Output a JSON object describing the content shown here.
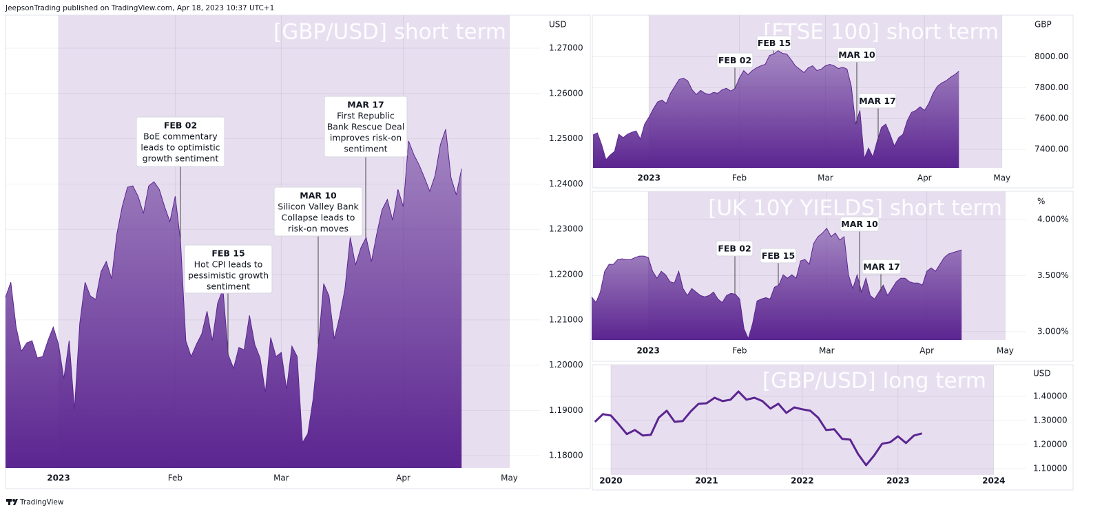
{
  "header": {
    "text": "JeepsonTrading published on TradingView.com, Apr 18, 2023 10:37 UTC+1"
  },
  "footer": {
    "brand": "TradingView"
  },
  "chart_data": [
    {
      "type": "area",
      "title": "[GBP/USD] short term",
      "unit": "USD",
      "color": "#5b2590",
      "shade": "#e7dff0",
      "categories": [
        null,
        null,
        null,
        null,
        null,
        null,
        null,
        null,
        null,
        null,
        "2023",
        null,
        null,
        null,
        null,
        null,
        null,
        null,
        null,
        null,
        null,
        null,
        null,
        null,
        null,
        null,
        null,
        null,
        null,
        null,
        null,
        null,
        "Feb",
        null,
        null,
        null,
        null,
        null,
        null,
        null,
        null,
        null,
        null,
        null,
        null,
        null,
        null,
        null,
        null,
        null,
        null,
        null,
        "Mar",
        null,
        null,
        null,
        null,
        null,
        null,
        null,
        null,
        null,
        null,
        null,
        null,
        null,
        null,
        null,
        null,
        null,
        null,
        null,
        null,
        null,
        null,
        "Apr",
        null,
        null,
        null,
        null,
        null,
        null,
        null,
        null,
        null,
        null,
        null,
        null,
        null,
        null,
        null,
        null,
        null,
        null,
        null,
        "May",
        null,
        null,
        null,
        null,
        null,
        null
      ],
      "values": [
        1.215,
        1.2183,
        1.2084,
        1.2031,
        1.2049,
        1.2054,
        1.2016,
        1.2019,
        1.2054,
        1.2084,
        1.2046,
        1.197,
        1.2054,
        1.1902,
        1.2092,
        1.2183,
        1.2153,
        1.2145,
        1.2206,
        1.2229,
        1.2191,
        1.229,
        1.235,
        1.2393,
        1.2396,
        1.2373,
        1.2335,
        1.2396,
        1.2405,
        1.2388,
        1.235,
        1.2317,
        1.2373,
        1.2274,
        1.2054,
        1.2019,
        1.2046,
        1.2069,
        1.2119,
        1.2054,
        1.2137,
        1.2168,
        1.2023,
        1.1993,
        1.2039,
        1.2034,
        1.211,
        1.2046,
        1.2016,
        1.194,
        1.2061,
        1.2019,
        1.2028,
        1.1947,
        1.2042,
        1.2019,
        1.1829,
        1.1849,
        1.1925,
        1.2046,
        1.218,
        1.2153,
        1.2058,
        1.2107,
        1.2168,
        1.2282,
        1.2221,
        1.2259,
        1.2282,
        1.2229,
        1.229,
        1.2343,
        1.2366,
        1.232,
        1.2388,
        1.235,
        1.2495,
        1.2465,
        1.2442,
        1.2414,
        1.2384,
        1.2419,
        1.2487,
        1.2521,
        1.2414,
        1.2376,
        1.2434,
        null,
        null,
        null,
        null,
        null,
        null,
        null,
        null,
        null,
        null,
        null,
        null,
        null,
        null,
        null
      ],
      "ylim": [
        1.1773,
        1.2773
      ],
      "yticks": [
        {
          "value": 1.18,
          "label": "1.18000"
        },
        {
          "value": 1.19,
          "label": "1.19000"
        },
        {
          "value": 1.2,
          "label": "1.20000"
        },
        {
          "value": 1.21,
          "label": "1.21000"
        },
        {
          "value": 1.22,
          "label": "1.22000"
        },
        {
          "value": 1.23,
          "label": "1.23000"
        },
        {
          "value": 1.24,
          "label": "1.24000"
        },
        {
          "value": 1.25,
          "label": "1.25000"
        },
        {
          "value": 1.26,
          "label": "1.26000"
        },
        {
          "value": 1.27,
          "label": "1.27000"
        }
      ],
      "annotations": [
        {
          "date": "FEB 02",
          "text": [
            "BoE commentary",
            "leads to optimistic",
            "growth sentiment"
          ]
        },
        {
          "date": "FEB 15",
          "text": [
            "Hot CPI leads to",
            "pessimistic growth",
            "sentiment"
          ]
        },
        {
          "date": "MAR 10",
          "text": [
            "Silicon Valley Bank",
            "Collapse leads to",
            "risk-on moves"
          ]
        },
        {
          "date": "MAR 17",
          "text": [
            "First Republic",
            "Bank Rescue Deal",
            "improves risk-on",
            "sentiment"
          ]
        }
      ]
    },
    {
      "type": "area",
      "title": "[FTSE 100] short term",
      "unit": "GBP",
      "color": "#5b2590",
      "shade": "#e7dff0",
      "categories": [
        null,
        null,
        null,
        null,
        null,
        null,
        null,
        null,
        null,
        null,
        null,
        null,
        null,
        "2023",
        null,
        null,
        null,
        null,
        null,
        null,
        null,
        null,
        null,
        null,
        null,
        null,
        null,
        null,
        null,
        null,
        null,
        null,
        null,
        null,
        "Feb",
        null,
        null,
        null,
        null,
        null,
        null,
        null,
        null,
        null,
        null,
        null,
        null,
        null,
        null,
        null,
        null,
        null,
        null,
        null,
        "Mar",
        null,
        null,
        null,
        null,
        null,
        null,
        null,
        null,
        null,
        null,
        null,
        null,
        null,
        null,
        null,
        null,
        null,
        null,
        null,
        null,
        null,
        null,
        "Apr",
        null,
        null,
        null,
        null,
        null,
        null,
        null,
        null,
        null,
        null,
        null,
        null,
        null,
        null,
        null,
        null,
        null,
        "May",
        null,
        null,
        null,
        null,
        null
      ],
      "values": [
        7493,
        7507,
        7431,
        7333,
        7364,
        7387,
        7498,
        7476,
        7498,
        7511,
        7520,
        7467,
        7564,
        7609,
        7662,
        7707,
        7720,
        7698,
        7764,
        7809,
        7853,
        7862,
        7844,
        7787,
        7756,
        7782,
        7764,
        7756,
        7769,
        7764,
        7787,
        7796,
        7778,
        7796,
        7862,
        7911,
        7884,
        7911,
        7929,
        7942,
        7951,
        8009,
        8018,
        8040,
        8022,
        8018,
        7982,
        7942,
        7920,
        7898,
        7929,
        7942,
        7911,
        7920,
        7942,
        7951,
        7942,
        7924,
        7933,
        7920,
        7809,
        7564,
        7653,
        7342,
        7409,
        7351,
        7453,
        7542,
        7564,
        7498,
        7422,
        7476,
        7498,
        7587,
        7640,
        7653,
        7676,
        7653,
        7698,
        7764,
        7809,
        7831,
        7844,
        7867,
        7884,
        7907,
        null,
        null,
        null,
        null,
        null,
        null,
        null,
        null,
        null,
        null,
        null,
        null,
        null,
        null,
        null
      ],
      "ylim": [
        7280,
        8270
      ],
      "yticks": [
        {
          "value": 7400,
          "label": "7400.00"
        },
        {
          "value": 7600,
          "label": "7600.00"
        },
        {
          "value": 7800,
          "label": "7800.00"
        },
        {
          "value": 8000,
          "label": "8000.00"
        }
      ],
      "annotations": [
        {
          "date": "FEB 02"
        },
        {
          "date": "FEB 15"
        },
        {
          "date": "MAR 10"
        },
        {
          "date": "MAR 17"
        }
      ]
    },
    {
      "type": "area",
      "title": "[UK 10Y YIELDS] short term",
      "unit": "%",
      "color": "#5b2590",
      "shade": "#e7dff0",
      "categories": [
        null,
        null,
        null,
        null,
        null,
        null,
        null,
        null,
        null,
        null,
        null,
        null,
        null,
        "2023",
        null,
        null,
        null,
        null,
        null,
        null,
        null,
        null,
        null,
        null,
        null,
        null,
        null,
        null,
        null,
        null,
        null,
        null,
        null,
        null,
        "Feb",
        null,
        null,
        null,
        null,
        null,
        null,
        null,
        null,
        null,
        null,
        null,
        null,
        null,
        null,
        null,
        null,
        null,
        null,
        null,
        "Mar",
        null,
        null,
        null,
        null,
        null,
        null,
        null,
        null,
        null,
        null,
        null,
        null,
        null,
        null,
        null,
        null,
        null,
        null,
        null,
        null,
        null,
        null,
        "Apr",
        null,
        null,
        null,
        null,
        null,
        null,
        null,
        null,
        null,
        null,
        null,
        null,
        null,
        null,
        null,
        null,
        null,
        "May",
        null,
        null,
        null,
        null,
        null
      ],
      "values": [
        3.309,
        3.259,
        3.352,
        3.537,
        3.599,
        3.599,
        3.642,
        3.648,
        3.642,
        3.642,
        3.66,
        3.673,
        3.673,
        3.66,
        3.537,
        3.475,
        3.537,
        3.506,
        3.444,
        3.432,
        3.537,
        3.383,
        3.321,
        3.383,
        3.352,
        3.321,
        3.309,
        3.321,
        3.352,
        3.29,
        3.259,
        3.321,
        3.34,
        3.333,
        3.29,
        3.025,
        2.938,
        3.074,
        3.272,
        3.29,
        3.302,
        3.29,
        3.395,
        3.414,
        3.506,
        3.475,
        3.506,
        3.475,
        3.63,
        3.642,
        3.599,
        3.784,
        3.846,
        3.877,
        3.92,
        3.846,
        3.877,
        3.815,
        3.846,
        3.506,
        3.383,
        3.506,
        3.352,
        3.475,
        3.321,
        3.29,
        3.352,
        3.414,
        3.321,
        3.383,
        3.444,
        3.475,
        3.475,
        3.444,
        3.432,
        3.432,
        3.414,
        3.537,
        3.568,
        3.537,
        3.599,
        3.66,
        3.691,
        3.704,
        3.716,
        3.728,
        null,
        null,
        null,
        null,
        null,
        null,
        null,
        null,
        null,
        null,
        null,
        null,
        null,
        null,
        null
      ],
      "ylim": [
        2.925,
        4.25
      ],
      "yticks": [
        {
          "value": 3,
          "label": "3.000%"
        },
        {
          "value": 3.5,
          "label": "3.500%"
        },
        {
          "value": 4,
          "label": "4.000%"
        }
      ],
      "annotations": [
        {
          "date": "FEB 02"
        },
        {
          "date": "FEB 15"
        },
        {
          "date": "MAR 10"
        },
        {
          "date": "MAR 17"
        }
      ]
    },
    {
      "type": "line",
      "title": "[GBP/USD] long term",
      "unit": "USD",
      "color": "#5b2590",
      "shade": "#e7dff0",
      "categories": [
        null,
        null,
        "2020",
        null,
        null,
        null,
        null,
        null,
        null,
        null,
        null,
        null,
        null,
        null,
        "2021",
        null,
        null,
        null,
        null,
        null,
        null,
        null,
        null,
        null,
        null,
        null,
        "2022",
        null,
        null,
        null,
        null,
        null,
        null,
        null,
        null,
        null,
        null,
        null,
        "2023",
        null,
        null,
        null,
        null,
        null,
        null,
        null,
        null,
        null,
        null,
        null,
        "2024",
        null,
        null,
        null,
        null
      ],
      "values": [
        1.294,
        1.326,
        1.32,
        1.283,
        1.243,
        1.26,
        1.237,
        1.24,
        1.311,
        1.34,
        1.294,
        1.297,
        1.337,
        1.369,
        1.371,
        1.394,
        1.38,
        1.386,
        1.42,
        1.386,
        1.394,
        1.38,
        1.349,
        1.369,
        1.331,
        1.354,
        1.346,
        1.34,
        1.311,
        1.26,
        1.263,
        1.223,
        1.22,
        1.16,
        1.114,
        1.154,
        1.203,
        1.209,
        1.234,
        1.206,
        1.237,
        1.246,
        null,
        null,
        null,
        null,
        null,
        null,
        null,
        null,
        null,
        null,
        null,
        null,
        null
      ],
      "ylim": [
        1.074,
        1.531
      ],
      "yticks": [
        {
          "value": 1.1,
          "label": "1.10000"
        },
        {
          "value": 1.2,
          "label": "1.20000"
        },
        {
          "value": 1.3,
          "label": "1.30000"
        },
        {
          "value": 1.4,
          "label": "1.40000"
        }
      ]
    }
  ]
}
